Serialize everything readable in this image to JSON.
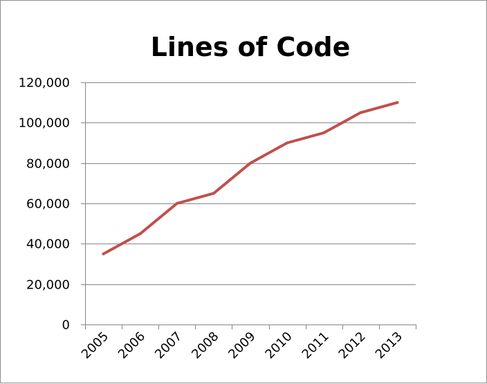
{
  "chart_data": {
    "type": "line",
    "title": "Lines of Code",
    "xlabel": "",
    "ylabel": "",
    "categories": [
      "2005",
      "2006",
      "2007",
      "2008",
      "2009",
      "2010",
      "2011",
      "2012",
      "2013"
    ],
    "series": [
      {
        "values": [
          35000,
          45000,
          60000,
          65000,
          80000,
          90000,
          95000,
          105000,
          110000
        ]
      }
    ],
    "ylim": [
      0,
      120000
    ],
    "yticks": [
      0,
      20000,
      40000,
      60000,
      80000,
      100000,
      120000
    ],
    "ytick_labels": [
      "0",
      "20,000",
      "40,000",
      "60,000",
      "80,000",
      "100,000",
      "120,000"
    ],
    "grid": true,
    "legend": "none",
    "colors": {
      "line": "#c0504d",
      "grid": "#868686",
      "axis": "#868686"
    }
  }
}
